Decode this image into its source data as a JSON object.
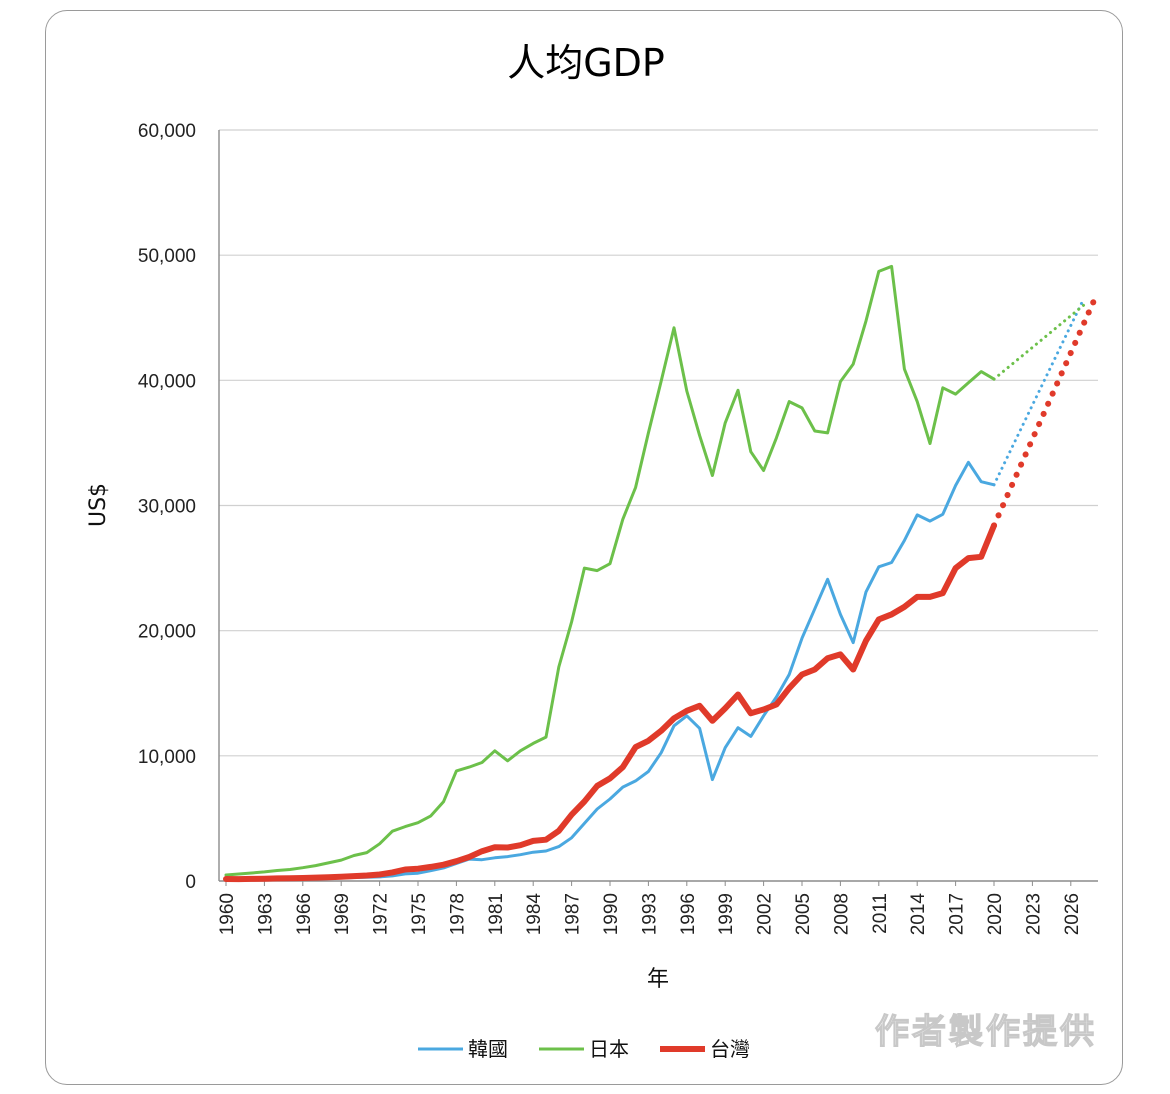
{
  "watermark": "作者製作提供",
  "chart_data": {
    "type": "line",
    "title": "人均GDP",
    "xlabel": "年",
    "ylabel": "US$",
    "ylim": [
      0,
      60000
    ],
    "yticks": [
      0,
      10000,
      20000,
      30000,
      40000,
      50000,
      60000
    ],
    "ytick_labels": [
      "0",
      "10,000",
      "20,000",
      "30,000",
      "40,000",
      "50,000",
      "60,000"
    ],
    "xlim": [
      1960,
      2028
    ],
    "xticks": [
      1960,
      1963,
      1966,
      1969,
      1972,
      1975,
      1978,
      1981,
      1984,
      1987,
      1990,
      1993,
      1996,
      1999,
      2002,
      2005,
      2008,
      2011,
      2014,
      2017,
      2020,
      2023,
      2026
    ],
    "grid": true,
    "legend": "bottom",
    "series": [
      {
        "name": "韓國",
        "color": "#4aa8e0",
        "x": [
          1960,
          1961,
          1962,
          1963,
          1964,
          1965,
          1966,
          1967,
          1968,
          1969,
          1970,
          1971,
          1972,
          1973,
          1974,
          1975,
          1976,
          1977,
          1978,
          1979,
          1980,
          1981,
          1982,
          1983,
          1984,
          1985,
          1986,
          1987,
          1988,
          1989,
          1990,
          1991,
          1992,
          1993,
          1994,
          1995,
          1996,
          1997,
          1998,
          1999,
          2000,
          2001,
          2002,
          2003,
          2004,
          2005,
          2006,
          2007,
          2008,
          2009,
          2010,
          2011,
          2012,
          2013,
          2014,
          2015,
          2016,
          2017,
          2018,
          2019,
          2020
        ],
        "values": [
          160,
          95,
          105,
          145,
          125,
          110,
          135,
          160,
          200,
          245,
          280,
          300,
          325,
          410,
          570,
          620,
          830,
          1050,
          1400,
          1750,
          1700,
          1850,
          1950,
          2100,
          2300,
          2400,
          2750,
          3450,
          4600,
          5750,
          6550,
          7500,
          8000,
          8750,
          10250,
          12400,
          13200,
          12200,
          8100,
          10650,
          12250,
          11550,
          13200,
          14700,
          16500,
          19400,
          21750,
          24100,
          21300,
          19050,
          23100,
          25100,
          25450,
          27200,
          29250,
          28750,
          29300,
          31600,
          33450,
          31900,
          31650
        ]
      },
      {
        "name": "韓國",
        "color": "#4aa8e0",
        "x": [
          2020,
          2027
        ],
        "values": [
          31650,
          46500
        ]
      },
      {
        "name": "日本",
        "color": "#6cc04a",
        "x": [
          1960,
          1961,
          1962,
          1963,
          1964,
          1965,
          1966,
          1967,
          1968,
          1969,
          1970,
          1971,
          1972,
          1973,
          1974,
          1975,
          1976,
          1977,
          1978,
          1979,
          1980,
          1981,
          1982,
          1983,
          1984,
          1985,
          1986,
          1987,
          1988,
          1989,
          1990,
          1991,
          1992,
          1993,
          1994,
          1995,
          1996,
          1997,
          1998,
          1999,
          2000,
          2001,
          2002,
          2003,
          2004,
          2005,
          2006,
          2007,
          2008,
          2009,
          2010,
          2011,
          2012,
          2013,
          2014,
          2015,
          2016,
          2017,
          2018,
          2019,
          2020
        ],
        "values": [
          480,
          560,
          640,
          730,
          840,
          920,
          1060,
          1230,
          1450,
          1670,
          2040,
          2270,
          2970,
          3980,
          4350,
          4660,
          5200,
          6340,
          8800,
          9100,
          9470,
          10400,
          9600,
          10400,
          10990,
          11500,
          17100,
          20700,
          25000,
          24800,
          25350,
          28900,
          31450,
          35800,
          39950,
          44200,
          39150,
          35600,
          32400,
          36600,
          39200,
          34300,
          32800,
          35400,
          38300,
          37800,
          35950,
          35800,
          39900,
          41300,
          44750,
          48700,
          49100,
          40900,
          38300,
          34950,
          39400,
          38900,
          39800,
          40700,
          40100
        ]
      },
      {
        "name": "日本",
        "color": "#6cc04a",
        "x": [
          2020,
          2027
        ],
        "values": [
          40100,
          46000
        ]
      },
      {
        "name": "台灣",
        "color": "#e03a2a",
        "x": [
          1960,
          1961,
          1962,
          1963,
          1964,
          1965,
          1966,
          1967,
          1968,
          1969,
          1970,
          1971,
          1972,
          1973,
          1974,
          1975,
          1976,
          1977,
          1978,
          1979,
          1980,
          1981,
          1982,
          1983,
          1984,
          1985,
          1986,
          1987,
          1988,
          1989,
          1990,
          1991,
          1992,
          1993,
          1994,
          1995,
          1996,
          1997,
          1998,
          1999,
          2000,
          2001,
          2002,
          2003,
          2004,
          2005,
          2006,
          2007,
          2008,
          2009,
          2010,
          2011,
          2012,
          2013,
          2014,
          2015,
          2016,
          2017,
          2018,
          2019,
          2020
        ],
        "values": [
          160,
          150,
          165,
          180,
          205,
          220,
          240,
          275,
          305,
          345,
          390,
          440,
          520,
          690,
          920,
          980,
          1130,
          1300,
          1580,
          1920,
          2380,
          2700,
          2680,
          2860,
          3200,
          3300,
          4000,
          5300,
          6350,
          7600,
          8200,
          9100,
          10700,
          11200,
          12000,
          13000,
          13600,
          14000,
          12800,
          13800,
          14900,
          13400,
          13700,
          14100,
          15400,
          16500,
          16900,
          17800,
          18100,
          16900,
          19200,
          20900,
          21300,
          21900,
          22700,
          22700,
          23000,
          25000,
          25800,
          25900,
          28400
        ]
      },
      {
        "name": "台灣",
        "color": "#e03a2a",
        "x": [
          2020,
          2028
        ],
        "values": [
          28400,
          46800
        ]
      }
    ]
  }
}
